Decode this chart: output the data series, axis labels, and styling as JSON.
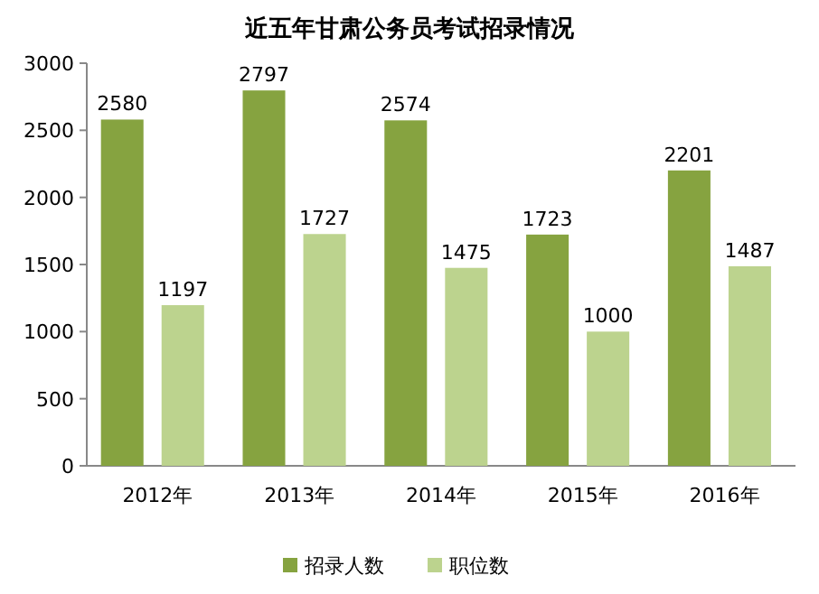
{
  "chart_data": {
    "type": "bar",
    "title": "近五年甘肃公务员考试招录情况",
    "categories": [
      "2012年",
      "2013年",
      "2014年",
      "2015年",
      "2016年"
    ],
    "series": [
      {
        "name": "招录人数",
        "color": "#86a340",
        "values": [
          2580,
          2797,
          2574,
          1723,
          2201
        ]
      },
      {
        "name": "职位数",
        "color": "#bcd38e",
        "values": [
          1197,
          1727,
          1475,
          1000,
          1487
        ]
      }
    ],
    "ylim": [
      0,
      3000
    ],
    "yticks": [
      0,
      500,
      1000,
      1500,
      2000,
      2500,
      3000
    ],
    "grid": false,
    "data_labels": true,
    "legend": "bottom"
  }
}
